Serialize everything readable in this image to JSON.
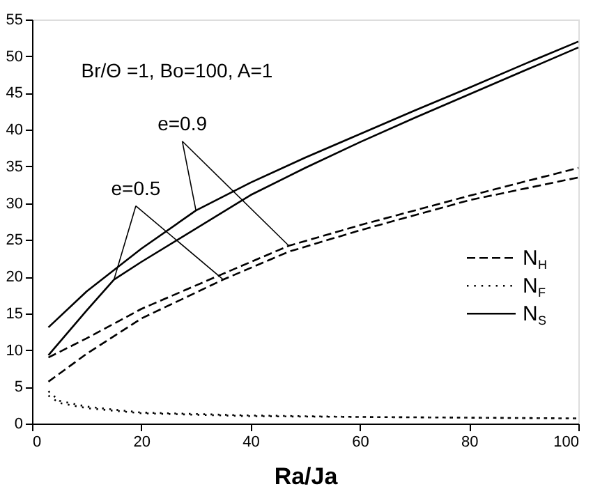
{
  "chart_data": {
    "type": "line",
    "xlabel": "Ra/Ja",
    "xlim": [
      0,
      100
    ],
    "xticks": [
      0,
      20,
      40,
      60,
      80,
      100
    ],
    "ylim": [
      0,
      55
    ],
    "yticks": [
      0,
      5,
      10,
      15,
      20,
      25,
      30,
      35,
      40,
      45,
      50,
      55
    ],
    "grid": false,
    "legend": "right",
    "marker": "none",
    "series": [
      {
        "name": "N$_{H}$",
        "color": "#000000",
        "line_style": "dashed",
        "x": [
          3,
          10,
          20,
          35,
          47,
          60,
          80,
          100
        ],
        "values": [
          9,
          11.6,
          15.6,
          20.4,
          24.2,
          27,
          31,
          34.8
        ]
      },
      {
        "color": "#000000",
        "line_style": "dashed",
        "x": [
          3,
          10,
          20,
          35,
          47,
          60,
          80,
          100
        ],
        "values": [
          5.7,
          9.5,
          14.3,
          19.6,
          23.4,
          26.3,
          30.4,
          33.5
        ]
      },
      {
        "name": "N$_{F}$",
        "color": "#000000",
        "line_style": "dotted",
        "x": [
          3,
          5,
          10,
          20,
          40,
          60,
          80,
          100
        ],
        "values": [
          4.4,
          3.1,
          2.3,
          1.5,
          1.1,
          0.9,
          0.8,
          0.7
        ]
      },
      {
        "color": "#000000",
        "line_style": "dotted",
        "x": [
          3,
          5,
          10,
          20,
          40,
          60,
          80,
          100
        ],
        "values": [
          3.8,
          2.8,
          2.1,
          1.4,
          1.0,
          0.9,
          0.8,
          0.7
        ]
      },
      {
        "name": "N$_{S}$",
        "color": "#000000",
        "line_style": "solid",
        "x": [
          3,
          10,
          20,
          30,
          40,
          50,
          60,
          70,
          80,
          90,
          100
        ],
        "values": [
          13.1,
          18,
          23.8,
          29,
          32.8,
          36.2,
          39.4,
          42.6,
          45.7,
          48.9,
          52
        ]
      },
      {
        "color": "#000000",
        "line_style": "solid",
        "x": [
          3,
          10,
          15,
          20,
          40,
          50,
          60,
          70,
          80,
          90,
          100
        ],
        "values": [
          9.3,
          15.4,
          19.6,
          22,
          31.1,
          34.8,
          38.3,
          41.6,
          44.8,
          48,
          51.2
        ]
      }
    ],
    "annotations": [
      "Br/Θ =1, Bo=100, A=1",
      {
        "text": "e=0.9",
        "x": 30,
        "y": 29
      },
      {
        "text": "e=0.5",
        "x": 15,
        "y": 19.6
      }
    ]
  }
}
